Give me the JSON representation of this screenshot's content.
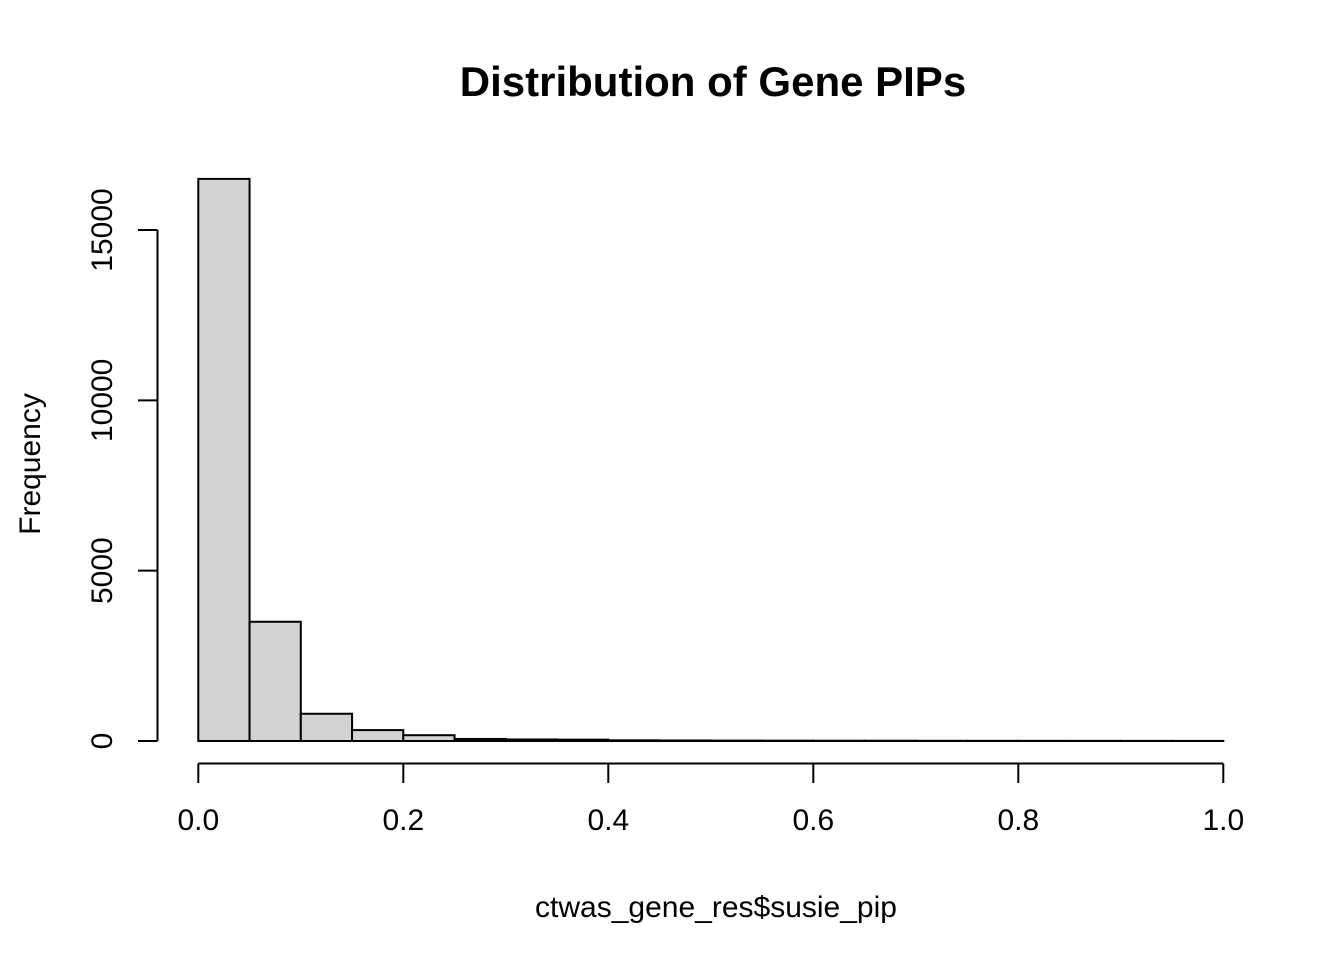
{
  "figure": {
    "title": "Distribution of Gene PIPs",
    "xlabel": "ctwas_gene_res$susie_pip",
    "ylabel": "Frequency"
  },
  "chart_data": {
    "type": "bar",
    "subtype": "histogram",
    "title": "Distribution of Gene PIPs",
    "xlabel": "ctwas_gene_res$susie_pip",
    "ylabel": "Frequency",
    "bin_start": 0,
    "bin_width": 0.05,
    "counts": [
      16500,
      3500,
      800,
      320,
      170,
      60,
      45,
      40,
      20,
      15,
      12,
      10,
      8,
      8,
      6,
      5,
      5,
      4,
      3,
      2
    ],
    "x_tick_values": [
      0,
      0.2,
      0.4,
      0.6,
      0.8,
      1.0
    ],
    "x_tick_labels": [
      "0.0",
      "0.2",
      "0.4",
      "0.6",
      "0.8",
      "1.0"
    ],
    "y_tick_values": [
      0,
      5000,
      10000,
      15000
    ],
    "y_tick_labels": [
      "0",
      "5000",
      "10000",
      "15000"
    ],
    "xlim": [
      0,
      1
    ],
    "ylim": [
      0,
      16500
    ],
    "grid": false,
    "legend_position": "none",
    "bar_fill": "#d3d3d3",
    "bar_stroke": "#000000",
    "axis_color": "#000000",
    "background_color": "#ffffff"
  }
}
